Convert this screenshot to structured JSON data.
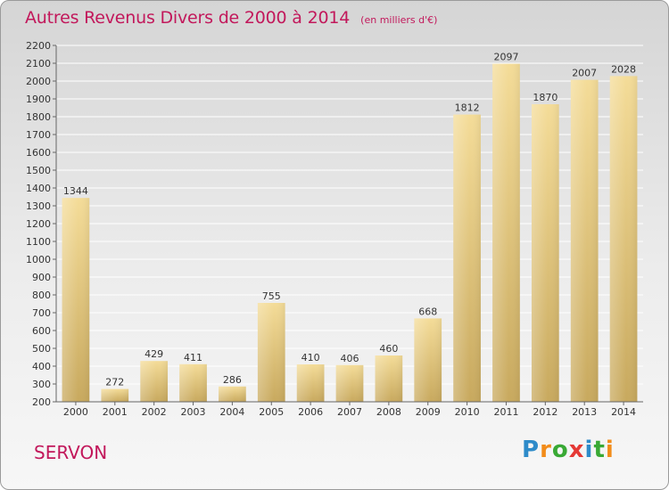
{
  "title": "Autres Revenus Divers de 2000 à 2014",
  "subtitle": "(en milliers d'€)",
  "commune": "SERVON",
  "logo": {
    "text": "Proxiti",
    "letters": [
      "P",
      "r",
      "o",
      "x",
      "i",
      "t",
      "i"
    ],
    "colors": [
      "#2e8bc9",
      "#f28c1a",
      "#39a935",
      "#e53935",
      "#2e8bc9",
      "#39a935",
      "#f28c1a"
    ]
  },
  "chart_data": {
    "type": "bar",
    "categories": [
      "2000",
      "2001",
      "2002",
      "2003",
      "2004",
      "2005",
      "2006",
      "2007",
      "2008",
      "2009",
      "2010",
      "2011",
      "2012",
      "2013",
      "2014"
    ],
    "values": [
      1344,
      272,
      429,
      411,
      286,
      755,
      410,
      406,
      460,
      668,
      1812,
      2097,
      1870,
      2007,
      2028
    ],
    "ylim": [
      200,
      2200
    ],
    "yticks": [
      200,
      300,
      400,
      500,
      600,
      700,
      800,
      900,
      1000,
      1100,
      1200,
      1300,
      1400,
      1500,
      1600,
      1700,
      1800,
      1900,
      2000,
      2100,
      2200
    ],
    "grid": true,
    "colors": {
      "bar_top": "#f4dc98",
      "bar_bottom": "#c8a95e",
      "grid": "#ffffff",
      "axis": "#666666"
    }
  }
}
